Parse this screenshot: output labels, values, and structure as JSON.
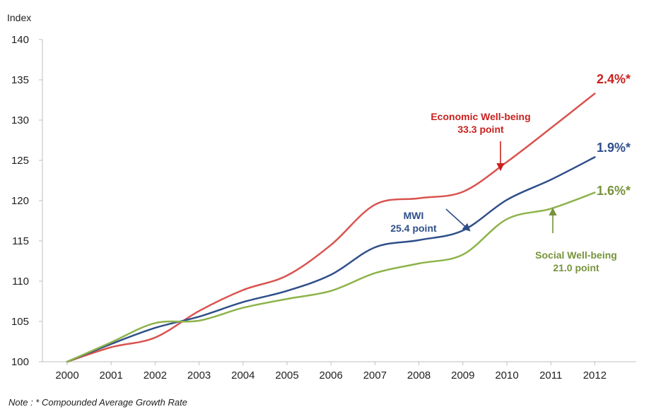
{
  "chart_data": {
    "type": "line",
    "ylabel": "Index",
    "ylim": [
      100,
      140
    ],
    "yticks": [
      100,
      105,
      110,
      115,
      120,
      125,
      130,
      135,
      140
    ],
    "categories": [
      "2000",
      "2001",
      "2002",
      "2003",
      "2004",
      "2005",
      "2006",
      "2007",
      "2008",
      "2009",
      "2010",
      "2011",
      "2012"
    ],
    "grid": false,
    "series": [
      {
        "name": "Economic Well-being",
        "color": "#d9534f",
        "values": [
          100,
          101.8,
          103.0,
          106.3,
          108.9,
          110.7,
          114.5,
          119.5,
          120.3,
          121.1,
          124.8,
          129.0,
          133.3
        ]
      },
      {
        "name": "MWI",
        "color": "#2f4f8a",
        "values": [
          100,
          102.2,
          104.2,
          105.6,
          107.4,
          108.8,
          110.8,
          114.2,
          115.1,
          116.3,
          120.1,
          122.6,
          125.4
        ]
      },
      {
        "name": "Social Well-being",
        "color": "#8db34a",
        "values": [
          100,
          102.4,
          104.8,
          105.1,
          106.7,
          107.8,
          108.8,
          111.0,
          112.2,
          113.3,
          117.7,
          119.0,
          121.0
        ]
      }
    ],
    "annotations": [
      {
        "series": "Economic Well-being",
        "lines": [
          "Economic Well-being",
          "33.3 point"
        ],
        "color": "#c9211e",
        "rate": "2.4%*"
      },
      {
        "series": "MWI",
        "lines": [
          "MWI",
          "25.4 point"
        ],
        "color": "#2f4f8a",
        "rate": "1.9%*"
      },
      {
        "series": "Social Well-being",
        "lines": [
          "Social Well-being",
          "21.0 point"
        ],
        "color": "#77933c",
        "rate": "1.6%*"
      }
    ],
    "note": "Note : * Compounded Average Growth Rate"
  }
}
